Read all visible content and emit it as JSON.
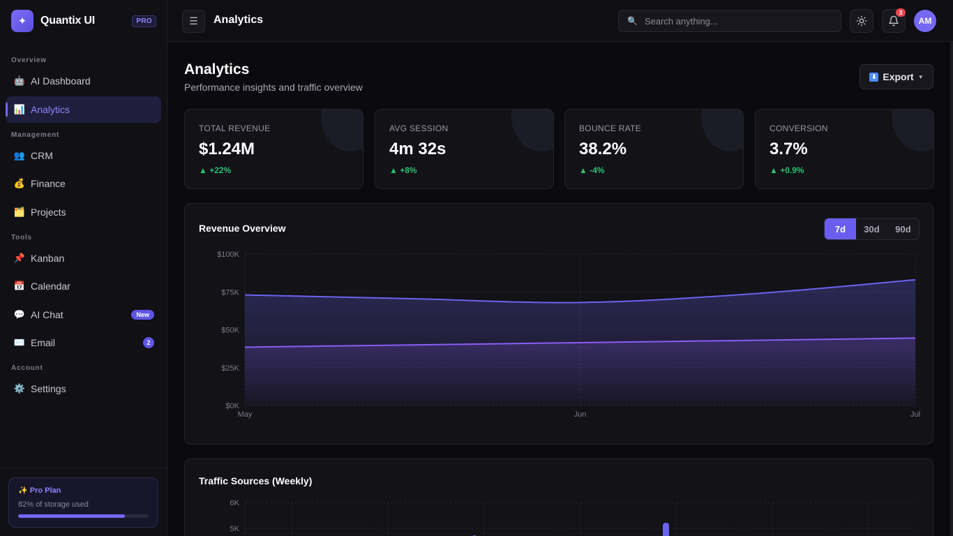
{
  "sidebar": {
    "brand": {
      "name": "Quantix UI",
      "badge": "PRO",
      "logo_icon": "✦"
    },
    "sections": {
      "overview": "Overview",
      "management": "Management",
      "tools": "Tools",
      "account": "Account"
    },
    "items": [
      {
        "label": "AI Dashboard",
        "icon": "🤖",
        "icon_name": "robot-icon"
      },
      {
        "label": "Analytics",
        "icon": "📊",
        "icon_name": "bar-chart-icon",
        "active": true
      },
      {
        "label": "CRM",
        "icon": "👥",
        "icon_name": "users-icon"
      },
      {
        "label": "Finance",
        "icon": "💰",
        "icon_name": "money-bag-icon"
      },
      {
        "label": "Projects",
        "icon": "🗂️",
        "icon_name": "folder-icon"
      },
      {
        "label": "Kanban",
        "icon": "📌",
        "icon_name": "pin-icon"
      },
      {
        "label": "Calendar",
        "icon": "📅",
        "icon_name": "calendar-icon"
      },
      {
        "label": "AI Chat",
        "icon": "💬",
        "icon_name": "chat-icon",
        "badge": "New"
      },
      {
        "label": "Email",
        "icon": "✉️",
        "icon_name": "mail-icon",
        "badge": "2"
      },
      {
        "label": "Settings",
        "icon": "⚙️",
        "icon_name": "gear-icon"
      }
    ],
    "plan": {
      "title": "✨ Pro Plan",
      "subtitle": "82% of storage used",
      "storage_used": 0.82
    }
  },
  "topbar": {
    "title": "Analytics",
    "search_placeholder": "Search anything...",
    "notifications": "3",
    "avatar": "AM"
  },
  "page": {
    "title": "Analytics",
    "subtitle": "Performance insights and traffic overview",
    "export_label": "Export"
  },
  "stats": [
    {
      "label": "TOTAL REVENUE",
      "value": "$1.24M",
      "delta": "+22%"
    },
    {
      "label": "AVG SESSION",
      "value": "4m 32s",
      "delta": "+8%"
    },
    {
      "label": "BOUNCE RATE",
      "value": "38.2%",
      "delta": "-4%"
    },
    {
      "label": "CONVERSION",
      "value": "3.7%",
      "delta": "+0.9%"
    }
  ],
  "revenue_panel": {
    "title": "Revenue Overview",
    "ranges": [
      "7d",
      "30d",
      "90d"
    ],
    "selected_range": "7d"
  },
  "traffic_panel": {
    "title": "Traffic Sources (Weekly)"
  },
  "colors": {
    "accent": "#7568f5",
    "series1": "#6b63f0",
    "series2": "#8b5cf6",
    "positive": "#2fbf71"
  },
  "chart_data": [
    {
      "type": "area",
      "title": "Revenue Overview",
      "x": [
        "May",
        "Jun",
        "Jul"
      ],
      "ylim": [
        0,
        100000
      ],
      "yticks": [
        "$0K",
        "$25K",
        "$50K",
        "$75K",
        "$100K"
      ],
      "xticks": [
        "May",
        "Jun",
        "Jul"
      ],
      "grid": true,
      "series": [
        {
          "values": [
            [
              0,
              73000
            ],
            [
              0.25,
              70500
            ],
            [
              0.5,
              68000
            ],
            [
              0.75,
              73500
            ],
            [
              1,
              83000
            ]
          ]
        },
        {
          "values": [
            [
              0,
              38500
            ],
            [
              0.25,
              40000
            ],
            [
              0.5,
              41500
            ],
            [
              0.75,
              43000
            ],
            [
              1,
              44500
            ]
          ]
        }
      ]
    },
    {
      "type": "bar",
      "title": "Traffic Sources (Weekly)",
      "ylim": [
        0,
        6000
      ],
      "yticks": [
        "6K",
        "5K"
      ],
      "grid": true
    }
  ]
}
